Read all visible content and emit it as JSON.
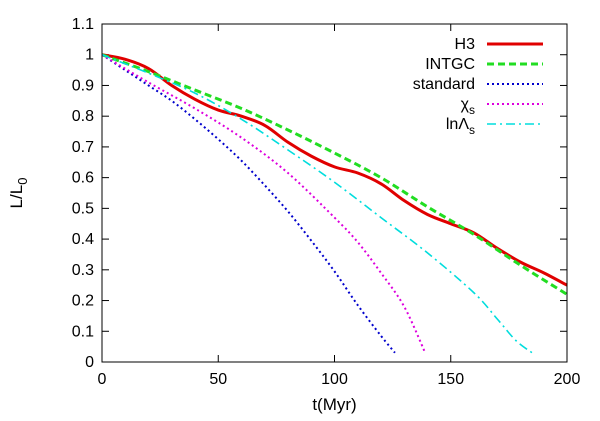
{
  "chart_data": {
    "type": "line",
    "xlabel": "t(Myr)",
    "ylabel": "L/L0",
    "xlim": [
      0,
      200
    ],
    "ylim": [
      0,
      1.1
    ],
    "xticks": [
      0,
      50,
      100,
      150,
      200
    ],
    "yticks": [
      0,
      0.1,
      0.2,
      0.3,
      0.4,
      0.5,
      0.6,
      0.7,
      0.8,
      0.9,
      1,
      1.1
    ],
    "legend_position": "top-right",
    "series": [
      {
        "name": "H3",
        "color": "#e00000",
        "style": "solid",
        "x": [
          0,
          10,
          20,
          30,
          40,
          50,
          60,
          70,
          80,
          90,
          100,
          110,
          120,
          130,
          140,
          150,
          160,
          170,
          180,
          190,
          200
        ],
        "y": [
          1.0,
          0.985,
          0.955,
          0.9,
          0.855,
          0.82,
          0.8,
          0.77,
          0.715,
          0.67,
          0.635,
          0.615,
          0.58,
          0.525,
          0.48,
          0.45,
          0.42,
          0.37,
          0.325,
          0.29,
          0.25
        ]
      },
      {
        "name": "INTGC",
        "color": "#22dd22",
        "style": "dashed",
        "x": [
          0,
          20,
          40,
          60,
          80,
          100,
          120,
          140,
          160,
          180,
          200
        ],
        "y": [
          1.0,
          0.945,
          0.885,
          0.825,
          0.755,
          0.68,
          0.6,
          0.505,
          0.415,
          0.315,
          0.22
        ]
      },
      {
        "name": "standard",
        "color": "#0000cc",
        "style": "dotted",
        "x": [
          0,
          10,
          20,
          30,
          40,
          50,
          60,
          70,
          80,
          90,
          100,
          110,
          120,
          126
        ],
        "y": [
          1.0,
          0.95,
          0.9,
          0.85,
          0.79,
          0.725,
          0.655,
          0.575,
          0.49,
          0.395,
          0.295,
          0.185,
          0.085,
          0.03
        ]
      },
      {
        "name": "χs",
        "color": "#dd00dd",
        "style": "dotted",
        "x": [
          0,
          20,
          40,
          60,
          80,
          100,
          110,
          120,
          130,
          139
        ],
        "y": [
          1.0,
          0.91,
          0.825,
          0.73,
          0.615,
          0.47,
          0.39,
          0.29,
          0.18,
          0.03
        ]
      },
      {
        "name": "lnΛs",
        "color": "#00dddd",
        "style": "dashdot",
        "x": [
          0,
          20,
          40,
          60,
          80,
          100,
          120,
          140,
          160,
          170,
          178,
          185
        ],
        "y": [
          1.0,
          0.94,
          0.875,
          0.79,
          0.69,
          0.585,
          0.47,
          0.355,
          0.225,
          0.14,
          0.07,
          0.03
        ]
      }
    ]
  }
}
